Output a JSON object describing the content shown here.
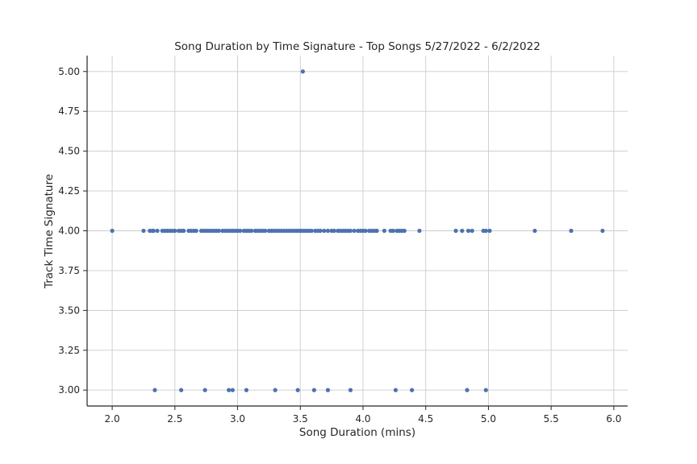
{
  "chart_data": {
    "type": "scatter",
    "title": "Song Duration by Time Signature - Top Songs 5/27/2022 - 6/2/2022",
    "xlabel": "Song Duration (mins)",
    "ylabel": "Track Time Signature",
    "xlim": [
      1.8,
      6.11
    ],
    "ylim": [
      2.9,
      5.1
    ],
    "xticks": [
      "2.0",
      "2.5",
      "3.0",
      "3.5",
      "4.0",
      "4.5",
      "5.0",
      "5.5",
      "6.0"
    ],
    "yticks": [
      "3.00",
      "3.25",
      "3.50",
      "3.75",
      "4.00",
      "4.25",
      "4.50",
      "4.75",
      "5.00"
    ],
    "grid": true,
    "marker_color": "#4c72b0",
    "series": [
      {
        "x": [
          3.52
        ],
        "y": [
          5
        ]
      },
      {
        "x": [
          2.0,
          2.25,
          2.3,
          2.32,
          2.33,
          2.36,
          2.4,
          2.42,
          2.44,
          2.46,
          2.48,
          2.5,
          2.53,
          2.55,
          2.57,
          2.61,
          2.63,
          2.65,
          2.67,
          2.71,
          2.73,
          2.75,
          2.77,
          2.79,
          2.81,
          2.83,
          2.85,
          2.88,
          2.9,
          2.92,
          2.94,
          2.96,
          2.98,
          3.0,
          3.02,
          3.05,
          3.07,
          3.09,
          3.11,
          3.14,
          3.16,
          3.18,
          3.2,
          3.22,
          3.25,
          3.27,
          3.29,
          3.31,
          3.33,
          3.35,
          3.37,
          3.39,
          3.41,
          3.43,
          3.45,
          3.47,
          3.49,
          3.51,
          3.53,
          3.55,
          3.57,
          3.59,
          3.62,
          3.64,
          3.66,
          3.69,
          3.72,
          3.75,
          3.77,
          3.8,
          3.82,
          3.84,
          3.86,
          3.88,
          3.9,
          3.93,
          3.96,
          3.98,
          4.0,
          4.02,
          4.05,
          4.07,
          4.09,
          4.11,
          4.17,
          4.22,
          4.24,
          4.27,
          4.29,
          4.31,
          4.33,
          4.45,
          4.74,
          4.79,
          4.84,
          4.87,
          4.96,
          4.98,
          5.01,
          5.37,
          5.66,
          5.91
        ],
        "y": [
          4,
          4,
          4,
          4,
          4,
          4,
          4,
          4,
          4,
          4,
          4,
          4,
          4,
          4,
          4,
          4,
          4,
          4,
          4,
          4,
          4,
          4,
          4,
          4,
          4,
          4,
          4,
          4,
          4,
          4,
          4,
          4,
          4,
          4,
          4,
          4,
          4,
          4,
          4,
          4,
          4,
          4,
          4,
          4,
          4,
          4,
          4,
          4,
          4,
          4,
          4,
          4,
          4,
          4,
          4,
          4,
          4,
          4,
          4,
          4,
          4,
          4,
          4,
          4,
          4,
          4,
          4,
          4,
          4,
          4,
          4,
          4,
          4,
          4,
          4,
          4,
          4,
          4,
          4,
          4,
          4,
          4,
          4,
          4,
          4,
          4,
          4,
          4,
          4,
          4,
          4,
          4,
          4,
          4,
          4,
          4,
          4,
          4,
          4,
          4,
          4,
          4
        ]
      },
      {
        "x": [
          2.34,
          2.55,
          2.74,
          2.93,
          2.96,
          3.07,
          3.3,
          3.48,
          3.61,
          3.72,
          3.9,
          4.26,
          4.39,
          4.83,
          4.98
        ],
        "y": [
          3,
          3,
          3,
          3,
          3,
          3,
          3,
          3,
          3,
          3,
          3,
          3,
          3,
          3,
          3
        ]
      }
    ]
  }
}
